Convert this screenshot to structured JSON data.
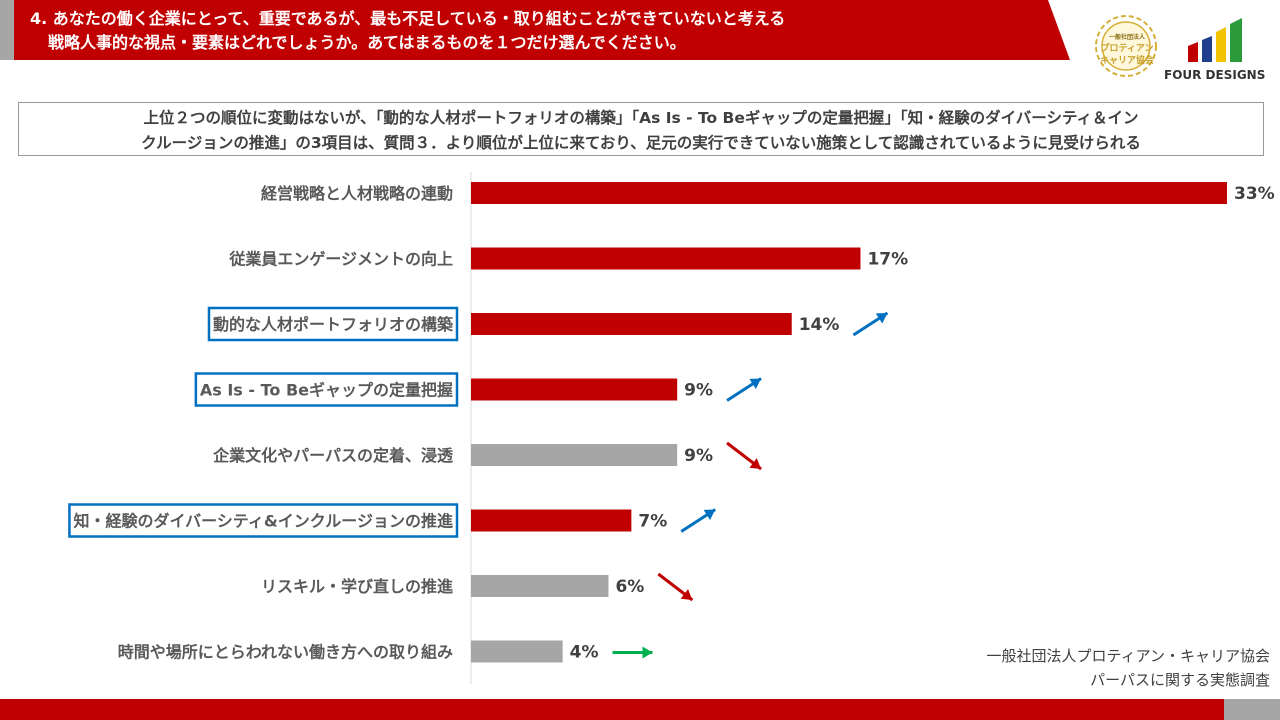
{
  "header": {
    "question_line1": "4. あなたの働く企業にとって、重要であるが、最も不足している・取り組むことができていないと考える",
    "question_line2": "戦略人事的な視点・要素はどれでしょうか。あてはまるものを１つだけ選んでください。"
  },
  "summary": {
    "line1": "上位２つの順位に変動はないが、「動的な人材ポートフォリオの構築」「As Is - To Beギャップの定量把握」「知・経験のダイバーシティ＆イン",
    "line2": "クルージョンの推進」の3項目は、質問３．より順位が上位に来ており、足元の実行できていない施策として認識されているように見受けられる"
  },
  "logos": {
    "badge_small": "一般社団法人",
    "badge_line1": "プロティアン",
    "badge_line2": "キャリア協会",
    "company": "FOUR DESIGNS"
  },
  "source": {
    "line1": "一般社団法人プロティアン・キャリア協会",
    "line2": "パーパスに関する実態調査"
  },
  "colors": {
    "red": "#c00000",
    "gray": "#a6a6a6",
    "blue": "#0070c0",
    "green": "#00b050"
  },
  "chart_data": {
    "type": "bar",
    "orientation": "horizontal",
    "categories": [
      "経営戦略と人材戦略の連動",
      "従業員エンゲージメントの向上",
      "動的な人材ポートフォリオの構築",
      "As Is - To Beギャップの定量把握",
      "企業文化やパーパスの定着、浸透",
      "知・経験のダイバーシティ&インクルージョンの推進",
      "リスキル・学び直しの推進",
      "時間や場所にとらわれない働き方への取り組み"
    ],
    "values": [
      33,
      17,
      14,
      9,
      9,
      7,
      6,
      4
    ],
    "value_labels": [
      "33%",
      "17%",
      "14%",
      "9%",
      "9%",
      "7%",
      "6%",
      "4%"
    ],
    "bar_colors": [
      "red",
      "red",
      "red",
      "red",
      "gray",
      "red",
      "gray",
      "gray"
    ],
    "highlighted": [
      false,
      false,
      true,
      true,
      false,
      true,
      false,
      false
    ],
    "trend": [
      "none",
      "none",
      "up",
      "up",
      "down",
      "up",
      "down",
      "flat"
    ],
    "xlim": [
      0,
      33
    ]
  }
}
